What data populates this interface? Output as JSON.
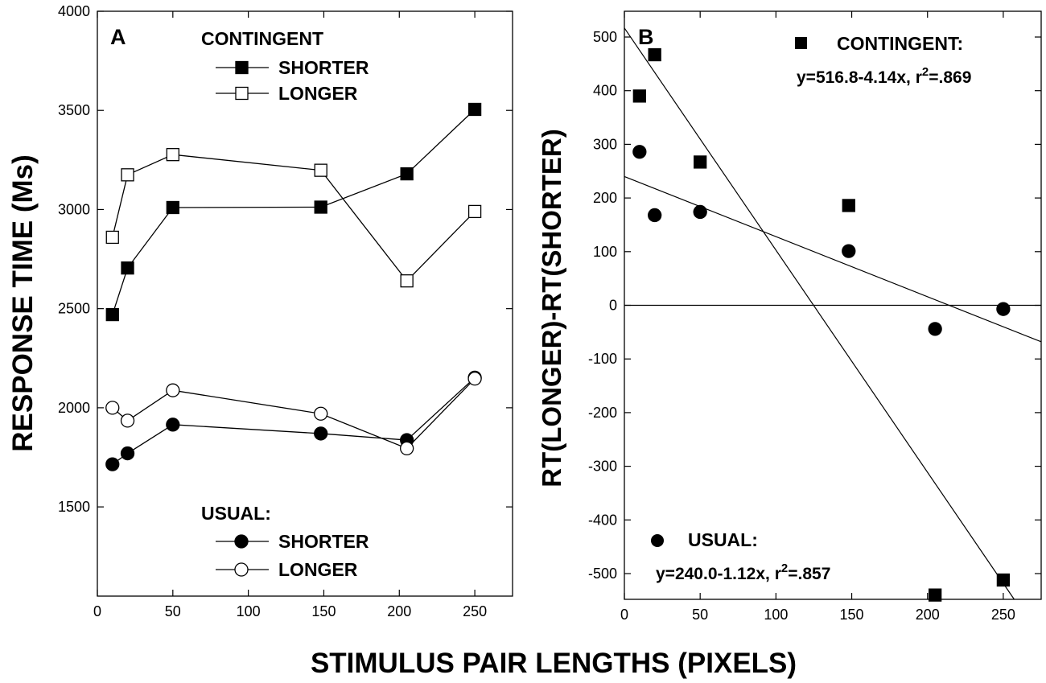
{
  "chart_data": [
    {
      "type": "line",
      "panel_label": "A",
      "ylabel": "RESPONSE TIME (Ms)",
      "xlim": [
        0,
        275
      ],
      "ylim": [
        1050,
        4000
      ],
      "xticks": [
        0,
        50,
        100,
        150,
        200,
        250
      ],
      "yticks": [
        1500,
        2000,
        2500,
        3000,
        3500,
        4000
      ],
      "grid": false,
      "legend_groups": [
        {
          "title": "CONTINGENT",
          "entries": [
            "SHORTER",
            "LONGER"
          ],
          "placement": "top"
        },
        {
          "title": "USUAL:",
          "entries": [
            "SHORTER",
            "LONGER"
          ],
          "placement": "bottom"
        }
      ],
      "series": [
        {
          "group": "CONTINGENT",
          "name": "SHORTER",
          "marker": "square-filled",
          "x": [
            10,
            20,
            50,
            148,
            205,
            250
          ],
          "y": [
            2470,
            2705,
            3010,
            3012,
            3180,
            3505
          ]
        },
        {
          "group": "CONTINGENT",
          "name": "LONGER",
          "marker": "square-open",
          "x": [
            10,
            20,
            50,
            148,
            205,
            250
          ],
          "y": [
            2860,
            3175,
            3277,
            3198,
            2640,
            2990
          ]
        },
        {
          "group": "USUAL:",
          "name": "SHORTER",
          "marker": "circle-filled",
          "x": [
            10,
            20,
            50,
            148,
            205,
            250
          ],
          "y": [
            1715,
            1770,
            1915,
            1870,
            1837,
            2152
          ]
        },
        {
          "group": "USUAL:",
          "name": "LONGER",
          "marker": "circle-open",
          "x": [
            10,
            20,
            50,
            148,
            205,
            250
          ],
          "y": [
            2000,
            1935,
            2088,
            1970,
            1795,
            2147
          ]
        }
      ]
    },
    {
      "type": "scatter",
      "panel_label": "B",
      "ylabel": "RT(LONGER)-RT(SHORTER)",
      "xlim": [
        0,
        275
      ],
      "ylim": [
        -548,
        548
      ],
      "xticks": [
        0,
        50,
        100,
        150,
        200,
        250
      ],
      "yticks": [
        -500,
        -400,
        -300,
        -200,
        -100,
        0,
        100,
        200,
        300,
        400,
        500
      ],
      "grid": false,
      "zero_line": true,
      "series": [
        {
          "name": "CONTINGENT:",
          "marker": "square-filled",
          "equation": "y=516.8-4.14x, r",
          "r2_sup": "2",
          "r2_value": "=.869",
          "intercept": 516.8,
          "slope": -4.14,
          "x": [
            10,
            20,
            50,
            148,
            205,
            250
          ],
          "y": [
            390,
            467,
            267,
            186,
            -540,
            -512
          ]
        },
        {
          "name": "USUAL:",
          "marker": "circle-filled",
          "equation": "y=240.0-1.12x, r",
          "r2_sup": "2",
          "r2_value": "=.857",
          "intercept": 240.0,
          "slope": -1.12,
          "x": [
            10,
            20,
            50,
            148,
            205,
            250
          ],
          "y": [
            286,
            168,
            174,
            101,
            -44,
            -7
          ]
        }
      ]
    }
  ],
  "shared_xlabel": "STIMULUS PAIR LENGTHS (PIXELS)"
}
